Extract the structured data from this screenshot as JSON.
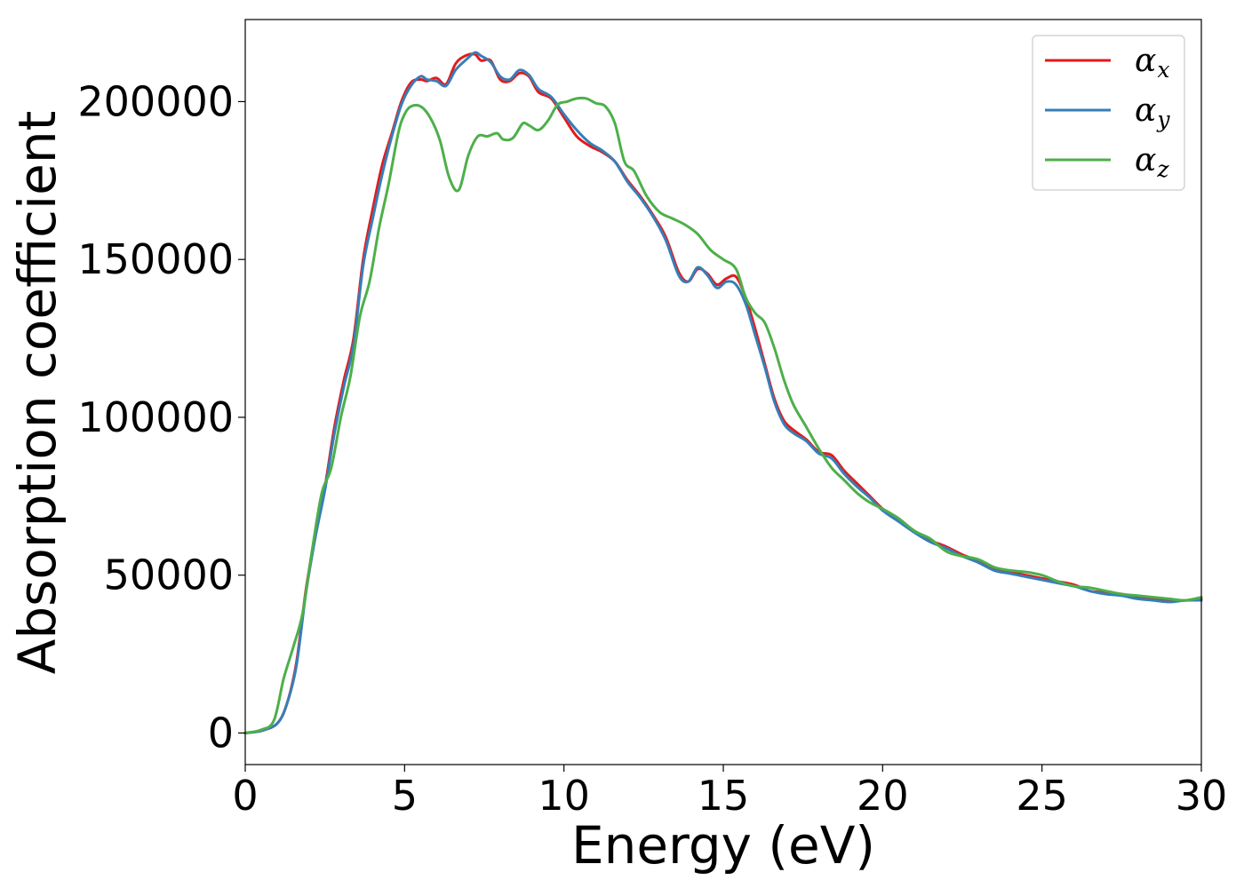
{
  "chart_data": {
    "type": "line",
    "title": "",
    "xlabel": "Energy (eV)",
    "ylabel": "Absorption coefficient",
    "xlim": [
      0,
      30
    ],
    "ylim": [
      -10000,
      226000
    ],
    "xticks": [
      0,
      5,
      10,
      15,
      20,
      25,
      30
    ],
    "xtick_labels": [
      "0",
      "5",
      "10",
      "15",
      "20",
      "25",
      "30"
    ],
    "yticks": [
      0,
      50000,
      100000,
      150000,
      200000
    ],
    "ytick_labels": [
      "0",
      "50000",
      "100000",
      "150000",
      "200000"
    ],
    "grid": false,
    "legend_position": "top-right",
    "series": [
      {
        "name": "αx",
        "legend_base": "α",
        "legend_sub": "x",
        "color": "#e41a1c",
        "x": [
          0,
          0.5,
          1.0,
          1.3,
          1.6,
          1.9,
          2.2,
          2.5,
          2.8,
          3.1,
          3.4,
          3.7,
          4.0,
          4.3,
          4.6,
          4.9,
          5.2,
          5.5,
          5.7,
          6.0,
          6.3,
          6.6,
          6.9,
          7.2,
          7.4,
          7.7,
          8.0,
          8.3,
          8.6,
          8.9,
          9.2,
          9.6,
          10.0,
          10.4,
          10.8,
          11.2,
          11.6,
          12.0,
          12.4,
          12.8,
          13.2,
          13.6,
          13.9,
          14.2,
          14.5,
          14.8,
          15.1,
          15.4,
          15.7,
          16.0,
          16.3,
          16.6,
          16.9,
          17.2,
          17.6,
          18.0,
          18.4,
          18.8,
          19.2,
          19.6,
          20.0,
          20.5,
          21.0,
          21.5,
          22.0,
          22.5,
          23.0,
          23.5,
          24.0,
          24.5,
          25.0,
          25.5,
          26.0,
          26.5,
          27.0,
          27.5,
          28.0,
          28.5,
          29.0,
          29.5,
          30.0
        ],
        "y": [
          0,
          700,
          3000,
          9000,
          22000,
          45000,
          63000,
          78000,
          97000,
          112000,
          125000,
          150000,
          166000,
          180000,
          190000,
          200000,
          206000,
          207000,
          206500,
          207500,
          205500,
          212000,
          214500,
          215000,
          213000,
          213000,
          207000,
          206500,
          209000,
          208000,
          203000,
          201000,
          195000,
          189000,
          186000,
          184000,
          181000,
          175000,
          170000,
          164000,
          157000,
          146000,
          143000,
          147000,
          145500,
          142000,
          144000,
          144500,
          138000,
          128000,
          117000,
          106000,
          99000,
          96000,
          93000,
          89000,
          88000,
          83000,
          79000,
          75000,
          71000,
          67500,
          64000,
          61000,
          59000,
          56500,
          54500,
          52000,
          51000,
          50000,
          49000,
          48000,
          47000,
          45000,
          44500,
          44000,
          43000,
          42500,
          42000,
          42000,
          42500
        ]
      },
      {
        "name": "αy",
        "legend_base": "α",
        "legend_sub": "y",
        "color": "#377eb8",
        "x": [
          0,
          0.5,
          1.0,
          1.3,
          1.6,
          1.9,
          2.2,
          2.5,
          2.8,
          3.1,
          3.4,
          3.7,
          4.0,
          4.3,
          4.6,
          4.9,
          5.2,
          5.5,
          5.7,
          6.0,
          6.3,
          6.6,
          6.9,
          7.2,
          7.4,
          7.7,
          8.0,
          8.3,
          8.6,
          8.9,
          9.2,
          9.6,
          10.0,
          10.4,
          10.8,
          11.2,
          11.6,
          12.0,
          12.4,
          12.8,
          13.2,
          13.6,
          13.9,
          14.2,
          14.5,
          14.8,
          15.1,
          15.4,
          15.7,
          16.0,
          16.3,
          16.6,
          16.9,
          17.2,
          17.6,
          18.0,
          18.4,
          18.8,
          19.2,
          19.6,
          20.0,
          20.5,
          21.0,
          21.5,
          22.0,
          22.5,
          23.0,
          23.5,
          24.0,
          24.5,
          25.0,
          25.5,
          26.0,
          26.5,
          27.0,
          27.5,
          28.0,
          28.5,
          29.0,
          29.5,
          30.0
        ],
        "y": [
          0,
          700,
          3000,
          9000,
          21000,
          44000,
          62000,
          77000,
          95000,
          110000,
          123000,
          148000,
          163000,
          177000,
          189000,
          199000,
          205000,
          208000,
          207000,
          206500,
          205000,
          210000,
          213000,
          215500,
          214500,
          212500,
          208000,
          207000,
          210000,
          208500,
          204000,
          201500,
          196000,
          191000,
          187000,
          184500,
          181000,
          174500,
          169500,
          163500,
          156000,
          145000,
          143000,
          147500,
          145000,
          141000,
          143000,
          142000,
          136000,
          126000,
          116000,
          105000,
          98000,
          95000,
          92500,
          88500,
          87000,
          82000,
          78000,
          74500,
          70500,
          67000,
          63500,
          60500,
          58500,
          56000,
          54000,
          51500,
          50500,
          49500,
          48500,
          47500,
          46500,
          45000,
          44000,
          43500,
          42500,
          42000,
          41500,
          42000,
          42000
        ]
      },
      {
        "name": "αz",
        "legend_base": "α",
        "legend_sub": "z",
        "color": "#4daf4a",
        "x": [
          0,
          0.5,
          0.9,
          1.2,
          1.5,
          1.8,
          2.1,
          2.4,
          2.7,
          3.0,
          3.3,
          3.6,
          3.9,
          4.2,
          4.5,
          4.8,
          5.0,
          5.2,
          5.5,
          5.8,
          6.1,
          6.4,
          6.7,
          7.0,
          7.3,
          7.6,
          7.9,
          8.1,
          8.4,
          8.7,
          8.9,
          9.2,
          9.5,
          9.8,
          10.1,
          10.4,
          10.7,
          11.0,
          11.3,
          11.6,
          11.9,
          12.2,
          12.6,
          13.0,
          13.4,
          13.8,
          14.2,
          14.6,
          15.0,
          15.4,
          15.7,
          16.0,
          16.3,
          16.6,
          16.9,
          17.2,
          17.6,
          18.0,
          18.4,
          18.8,
          19.2,
          19.6,
          20.0,
          20.5,
          21.0,
          21.5,
          22.0,
          22.5,
          23.0,
          23.5,
          24.0,
          24.5,
          25.0,
          25.5,
          26.0,
          26.5,
          27.0,
          27.5,
          28.0,
          28.5,
          29.0,
          29.5,
          30.0
        ],
        "y": [
          0,
          1000,
          4000,
          17000,
          27000,
          38000,
          58000,
          76000,
          84000,
          100000,
          113000,
          132000,
          143000,
          160000,
          174000,
          190000,
          196000,
          198500,
          198500,
          195000,
          188000,
          176000,
          172000,
          183000,
          189000,
          189000,
          190000,
          188000,
          188500,
          193000,
          192500,
          191000,
          194000,
          199000,
          200000,
          201000,
          201000,
          199500,
          198500,
          193000,
          181000,
          178000,
          170000,
          165000,
          163000,
          161000,
          158000,
          153000,
          150000,
          147000,
          138000,
          133000,
          130000,
          122000,
          112000,
          104000,
          97000,
          90000,
          84000,
          80000,
          76000,
          73000,
          71000,
          68000,
          64000,
          61500,
          57500,
          56000,
          55000,
          52500,
          51500,
          51000,
          50000,
          48000,
          46500,
          46000,
          45000,
          44000,
          43500,
          43000,
          42500,
          42000,
          43000
        ]
      }
    ]
  }
}
